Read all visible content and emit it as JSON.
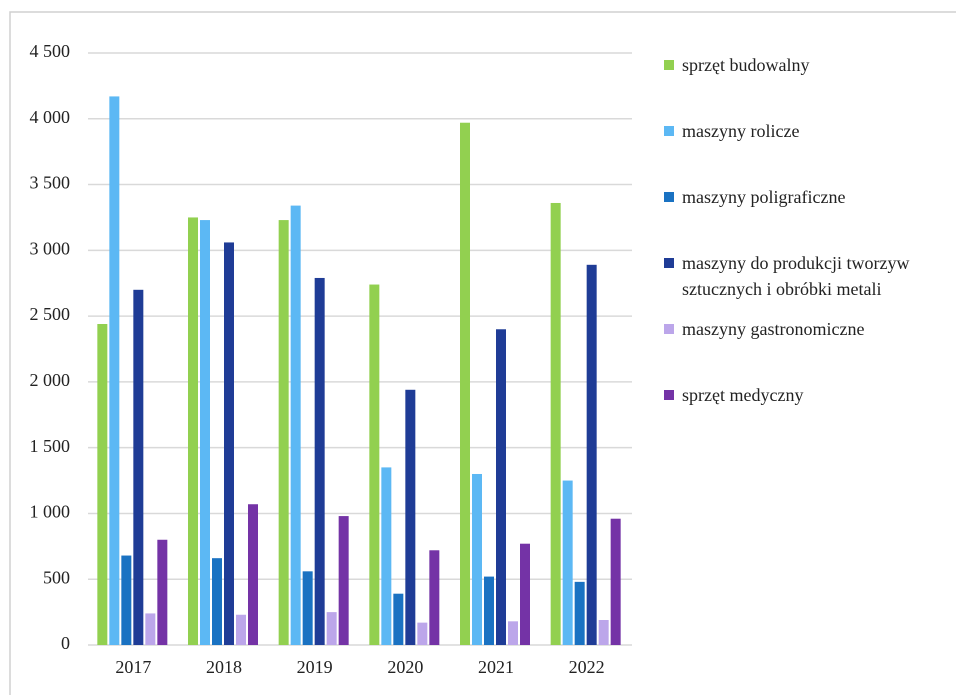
{
  "chart_data": {
    "type": "bar",
    "categories": [
      "2017",
      "2018",
      "2019",
      "2020",
      "2021",
      "2022"
    ],
    "series": [
      {
        "name": "sprzęt budowalny",
        "color": "#92d050",
        "values": [
          2440,
          3250,
          3230,
          2740,
          3970,
          3360
        ]
      },
      {
        "name": "maszyny rolicze",
        "color": "#5cb8f4",
        "values": [
          4170,
          3230,
          3340,
          1350,
          1300,
          1250
        ]
      },
      {
        "name": "maszyny poligraficzne",
        "color": "#1a72c2",
        "values": [
          680,
          660,
          560,
          390,
          520,
          480
        ]
      },
      {
        "name": "maszyny do produkcji tworzyw sztucznych i obróbki metali",
        "color": "#1f3c96",
        "values": [
          2700,
          3060,
          2790,
          1940,
          2400,
          2890
        ]
      },
      {
        "name": "maszyny gastronomiczne",
        "color": "#bca6ea",
        "values": [
          240,
          230,
          250,
          170,
          180,
          190
        ]
      },
      {
        "name": "sprzęt medyczny",
        "color": "#7433a6",
        "values": [
          800,
          1070,
          980,
          720,
          770,
          960
        ]
      }
    ],
    "ylim": [
      0,
      4500
    ],
    "yticks": [
      0,
      500,
      {
        "value": 1000,
        "label": "1 000"
      },
      {
        "value": 1500,
        "label": "1 500"
      },
      {
        "value": 2000,
        "label": "2 000"
      },
      {
        "value": 2500,
        "label": "2 500"
      },
      {
        "value": 3000,
        "label": "3 000"
      },
      {
        "value": 3500,
        "label": "3 500"
      },
      {
        "value": 4000,
        "label": "4 000"
      },
      {
        "value": 4500,
        "label": "4 500"
      }
    ],
    "grid": true,
    "legend": "right"
  }
}
